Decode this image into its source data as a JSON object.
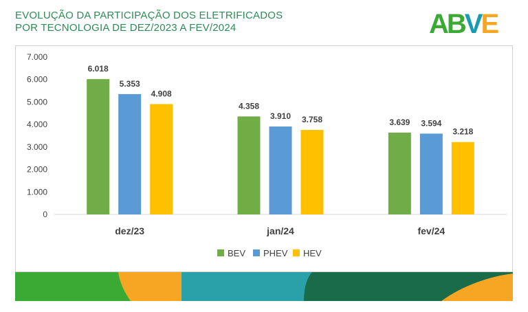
{
  "header": {
    "title_line1": "EVOLUÇÃO DA PARTICIPAÇÃO DOS ELETRIFICADOS",
    "title_line2": "POR TECNOLOGIA DE DEZ/2023 A FEV/2024",
    "logo_text": "ABVE"
  },
  "colors": {
    "title": "#2e8b57",
    "BEV": "#70ad47",
    "PHEV": "#5b9bd5",
    "HEV": "#ffc000",
    "logo_green": "#3aaa35",
    "logo_teal": "#1a9bb0",
    "logo_orange": "#f6a623",
    "footer_green": "#3aaa35",
    "footer_orange": "#f6a623",
    "footer_teal": "#2aa1a8",
    "footer_dark": "#1a6b4a"
  },
  "chart_data": {
    "type": "bar",
    "title": "EVOLUÇÃO DA PARTICIPAÇÃO DOS ELETRIFICADOS POR TECNOLOGIA DE DEZ/2023 A FEV/2024",
    "categories": [
      "dez/23",
      "jan/24",
      "fev/24"
    ],
    "series": [
      {
        "name": "BEV",
        "values": [
          6018,
          4358,
          3639
        ],
        "labels": [
          "6.018",
          "4.358",
          "3.639"
        ]
      },
      {
        "name": "PHEV",
        "values": [
          5353,
          3910,
          3594
        ],
        "labels": [
          "5.353",
          "3.910",
          "3.594"
        ]
      },
      {
        "name": "HEV",
        "values": [
          4908,
          3758,
          3218
        ],
        "labels": [
          "4.908",
          "3.758",
          "3.218"
        ]
      }
    ],
    "yticks": [
      "0",
      "1.000",
      "2.000",
      "3.000",
      "4.000",
      "5.000",
      "6.000",
      "7.000"
    ],
    "ylim": [
      0,
      7000
    ],
    "xlabel": "",
    "ylabel": "",
    "grid": false,
    "legend_position": "bottom"
  }
}
